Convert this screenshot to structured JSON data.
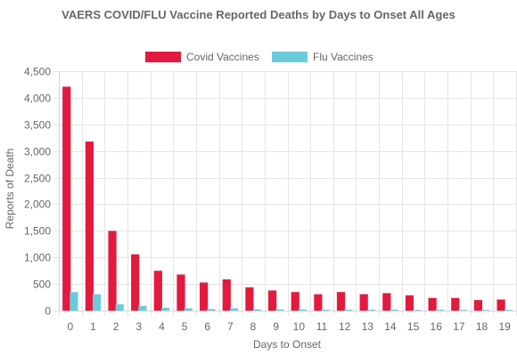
{
  "chart_data": {
    "type": "bar",
    "title": "VAERS COVID/FLU Vaccine Reported Deaths by Days to Onset All Ages",
    "xlabel": "Days to Onset",
    "ylabel": "Reports of Death",
    "ylim": [
      0,
      4500
    ],
    "y_ticks": [
      "0",
      "500",
      "1,000",
      "1,500",
      "2,000",
      "2,500",
      "3,000",
      "3,500",
      "4,000",
      "4,500"
    ],
    "y_tick_values": [
      0,
      500,
      1000,
      1500,
      2000,
      2500,
      3000,
      3500,
      4000,
      4500
    ],
    "categories": [
      "0",
      "1",
      "2",
      "3",
      "4",
      "5",
      "6",
      "7",
      "8",
      "9",
      "10",
      "11",
      "12",
      "13",
      "14",
      "15",
      "16",
      "17",
      "18",
      "19"
    ],
    "series": [
      {
        "name": "Covid Vaccines",
        "color": "#e31a40",
        "values": [
          4200,
          3170,
          1490,
          1050,
          740,
          670,
          520,
          580,
          430,
          370,
          340,
          300,
          340,
          300,
          320,
          280,
          230,
          230,
          190,
          200
        ]
      },
      {
        "name": "Flu Vaccines",
        "color": "#6ccbdb",
        "values": [
          340,
          300,
          110,
          80,
          45,
          35,
          20,
          35,
          15,
          15,
          15,
          10,
          10,
          10,
          10,
          5,
          10,
          5,
          5,
          5
        ]
      }
    ],
    "grid": true,
    "legend_position": "top"
  }
}
